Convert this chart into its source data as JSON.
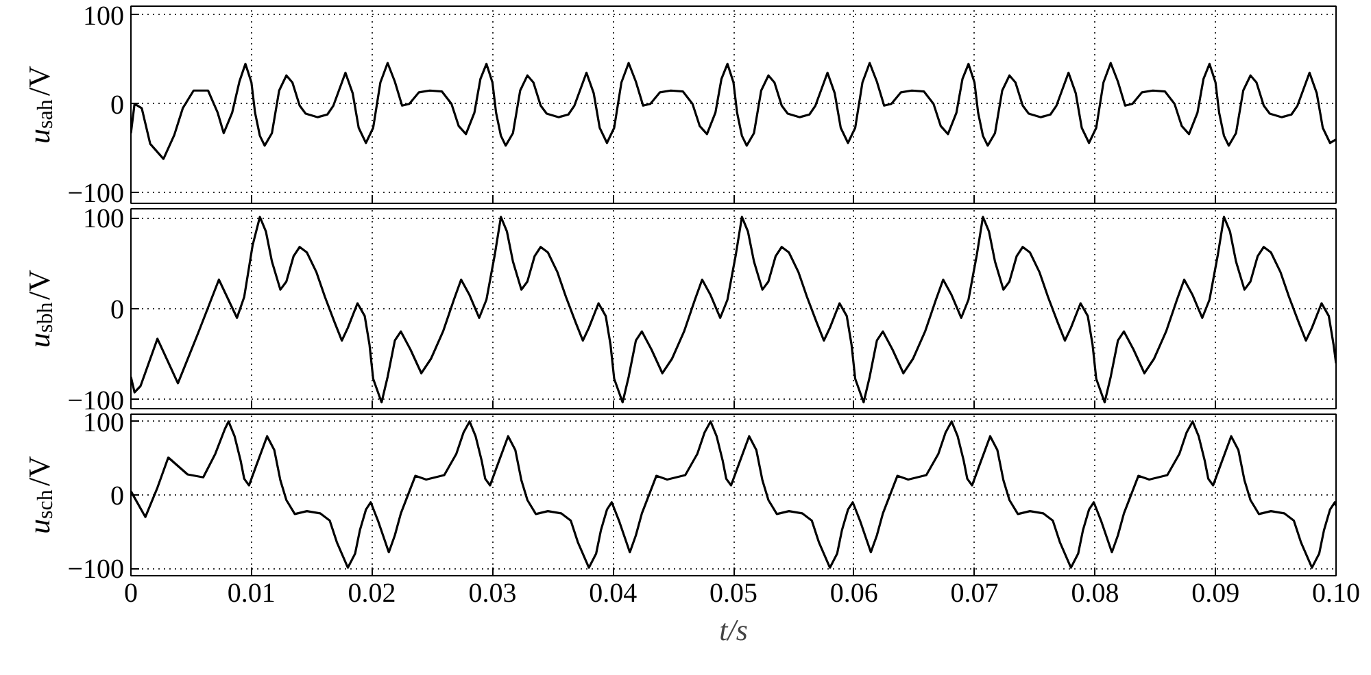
{
  "chart_data": [
    {
      "type": "line",
      "ylabel": "u$_{sah}$/V",
      "xlim": [
        0,
        0.1
      ],
      "ylim": [
        -112,
        110
      ],
      "yticks": [
        -100,
        0,
        100
      ],
      "xticks": [
        0,
        0.01,
        0.02,
        0.03,
        0.04,
        0.05,
        0.06,
        0.07,
        0.08,
        0.09
      ],
      "tick_labels": "y",
      "grid": true,
      "line_style": "solid",
      "series": [
        {
          "color": "#000000",
          "x": [
            0,
            0.0003,
            0.0009,
            0.0016,
            0.0027,
            0.0036,
            0.0043,
            0.0052,
            0.0064,
            0.0072,
            0.0077,
            0.0084,
            0.009,
            0.0095,
            0.01,
            0.0103,
            0.0107,
            0.0111,
            0.0117,
            0.0123,
            0.0129,
            0.0134,
            0.014,
            0.0145,
            0.0155,
            0.0163,
            0.0168,
            0.0178,
            0.0184,
            0.0189,
            0.0195,
            0.0201,
            0.0207,
            0.0213,
            0.0219,
            0.0225,
            0.0231,
            0.0239,
            0.0248,
            0.0258,
            0.0266,
            0.0272,
            0.0278,
            0.0285,
            0.029,
            0.0295,
            0.03,
            0.0303,
            0.0307,
            0.0311,
            0.0317,
            0.0323,
            0.0329,
            0.0334,
            0.034,
            0.0345,
            0.0355,
            0.0363,
            0.0368,
            0.0378,
            0.0384,
            0.0389,
            0.0395,
            0.0401,
            0.0407,
            0.0413,
            0.0419,
            0.0425,
            0.0431,
            0.0439,
            0.0448,
            0.0458,
            0.0466,
            0.0472,
            0.0478,
            0.0485,
            0.049,
            0.0495,
            0.05,
            0.0503,
            0.0507,
            0.0511,
            0.0517,
            0.0523,
            0.0529,
            0.0534,
            0.054,
            0.0545,
            0.0555,
            0.0563,
            0.0568,
            0.0578,
            0.0584,
            0.0589,
            0.0595,
            0.0601,
            0.0607,
            0.0613,
            0.0619,
            0.0625,
            0.0631,
            0.0639,
            0.0648,
            0.0658,
            0.0666,
            0.0672,
            0.0678,
            0.0685,
            0.069,
            0.0695,
            0.07,
            0.0703,
            0.0707,
            0.0711,
            0.0717,
            0.0723,
            0.0729,
            0.0734,
            0.074,
            0.0745,
            0.0755,
            0.0763,
            0.0768,
            0.0778,
            0.0784,
            0.0789,
            0.0795,
            0.0801,
            0.0807,
            0.0813,
            0.0819,
            0.0825,
            0.0831,
            0.0839,
            0.0848,
            0.0858,
            0.0866,
            0.0872,
            0.0878,
            0.0885,
            0.089,
            0.0895,
            0.09,
            0.0903,
            0.0907,
            0.0911,
            0.0917,
            0.0923,
            0.0929,
            0.0934,
            0.094,
            0.0945,
            0.0955,
            0.0963,
            0.0968,
            0.0978,
            0.0984,
            0.0989,
            0.0995,
            0.1
          ],
          "values": [
            -33,
            0,
            -5,
            -45,
            -62,
            -35,
            -5,
            15,
            15,
            -10,
            -33,
            -10,
            25,
            45,
            24,
            -10,
            -36,
            -47,
            -33,
            15,
            32,
            24,
            -2,
            -11,
            -15,
            -12,
            -2,
            35,
            12,
            -27,
            -44,
            -27,
            24,
            46,
            25,
            -2,
            0,
            13,
            15,
            14,
            0,
            -25,
            -34,
            -10,
            28,
            45,
            24,
            -10,
            -36,
            -47,
            -33,
            15,
            32,
            24,
            -2,
            -11,
            -15,
            -12,
            -2,
            35,
            12,
            -27,
            -44,
            -27,
            24,
            46,
            25,
            -2,
            0,
            13,
            15,
            14,
            0,
            -25,
            -34,
            -10,
            28,
            45,
            24,
            -10,
            -36,
            -47,
            -33,
            15,
            32,
            24,
            -2,
            -11,
            -15,
            -12,
            -2,
            35,
            12,
            -27,
            -44,
            -27,
            24,
            46,
            25,
            -2,
            0,
            13,
            15,
            14,
            0,
            -25,
            -34,
            -10,
            28,
            45,
            24,
            -10,
            -36,
            -47,
            -33,
            15,
            32,
            24,
            -2,
            -11,
            -15,
            -12,
            -2,
            35,
            12,
            -27,
            -44,
            -27,
            24,
            46,
            25,
            -2,
            0,
            13,
            15,
            14,
            0,
            -25,
            -34,
            -10,
            28,
            45,
            24,
            -10,
            -36,
            -47,
            -33,
            15,
            32,
            24,
            -2,
            -11,
            -15,
            -12,
            -2,
            35,
            12,
            -27,
            -44,
            -40
          ]
        }
      ]
    },
    {
      "type": "line",
      "ylabel": "u$_{sbh}$/V",
      "xlim": [
        0,
        0.1
      ],
      "ylim": [
        -110,
        110
      ],
      "yticks": [
        -100,
        0,
        100
      ],
      "xticks": [
        0,
        0.01,
        0.02,
        0.03,
        0.04,
        0.05,
        0.06,
        0.07,
        0.08,
        0.09
      ],
      "tick_labels": "y",
      "grid": true,
      "line_style": "solid",
      "series": [
        {
          "color": "#000000",
          "x": [
            0,
            0.0003,
            0.0008,
            0.0022,
            0.0039,
            0.0056,
            0.0073,
            0.0088,
            0.0094,
            0.0101,
            0.0107,
            0.0112,
            0.0117,
            0.0124,
            0.0129,
            0.0135,
            0.014,
            0.0146,
            0.0154,
            0.0161,
            0.0169,
            0.0175,
            0.018,
            0.0188,
            0.0194,
            0.0198,
            0.0201,
            0.0208,
            0.0213,
            0.0219,
            0.0224,
            0.0232,
            0.0241,
            0.0249,
            0.0259,
            0.0268,
            0.0274,
            0.0281,
            0.0289,
            0.0295,
            0.0302,
            0.0307,
            0.0312,
            0.0317,
            0.0324,
            0.0329,
            0.0335,
            0.034,
            0.0346,
            0.0354,
            0.0361,
            0.0369,
            0.0375,
            0.038,
            0.0388,
            0.0394,
            0.0398,
            0.0401,
            0.0408,
            0.0413,
            0.0419,
            0.0424,
            0.0432,
            0.0441,
            0.0449,
            0.0459,
            0.0468,
            0.0474,
            0.0481,
            0.0489,
            0.0495,
            0.0502,
            0.0507,
            0.0512,
            0.0517,
            0.0524,
            0.0529,
            0.0535,
            0.054,
            0.0546,
            0.0554,
            0.0561,
            0.0569,
            0.0575,
            0.058,
            0.0588,
            0.0594,
            0.0598,
            0.0601,
            0.0608,
            0.0613,
            0.0619,
            0.0624,
            0.0632,
            0.0641,
            0.0649,
            0.0659,
            0.0668,
            0.0674,
            0.0681,
            0.0689,
            0.0695,
            0.0702,
            0.0707,
            0.0712,
            0.0717,
            0.0724,
            0.0729,
            0.0735,
            0.074,
            0.0746,
            0.0754,
            0.0761,
            0.0769,
            0.0775,
            0.078,
            0.0788,
            0.0794,
            0.0798,
            0.0801,
            0.0808,
            0.0813,
            0.0819,
            0.0824,
            0.0832,
            0.0841,
            0.0849,
            0.0859,
            0.0868,
            0.0874,
            0.0881,
            0.0889,
            0.0895,
            0.0902,
            0.0907,
            0.0912,
            0.0917,
            0.0924,
            0.0929,
            0.0935,
            0.094,
            0.0946,
            0.0954,
            0.0961,
            0.0969,
            0.0975,
            0.098,
            0.0988,
            0.0994,
            0.0998,
            0.1
          ],
          "values": [
            -75,
            -92,
            -85,
            -33,
            -82,
            -26,
            32,
            -10,
            13,
            70,
            101,
            85,
            52,
            21,
            30,
            58,
            68,
            62,
            40,
            13,
            -15,
            -35,
            -21,
            6,
            -8,
            -40,
            -77,
            -103,
            -75,
            -35,
            -25,
            -45,
            -71,
            -55,
            -25,
            10,
            32,
            15,
            -10,
            10,
            60,
            101,
            85,
            52,
            21,
            30,
            58,
            68,
            62,
            40,
            13,
            -15,
            -35,
            -21,
            6,
            -8,
            -40,
            -77,
            -103,
            -75,
            -35,
            -25,
            -45,
            -71,
            -55,
            -25,
            10,
            32,
            15,
            -10,
            10,
            60,
            101,
            85,
            52,
            21,
            30,
            58,
            68,
            62,
            40,
            13,
            -15,
            -35,
            -21,
            6,
            -8,
            -40,
            -77,
            -103,
            -75,
            -35,
            -25,
            -45,
            -71,
            -55,
            -25,
            10,
            32,
            15,
            -10,
            10,
            60,
            101,
            85,
            52,
            21,
            30,
            58,
            68,
            62,
            40,
            13,
            -15,
            -35,
            -21,
            6,
            -8,
            -40,
            -77,
            -103,
            -75,
            -35,
            -25,
            -45,
            -71,
            -55,
            -25,
            10,
            32,
            15,
            -10,
            10,
            60,
            101,
            85,
            52,
            21,
            30,
            58,
            68,
            62,
            40,
            13,
            -15,
            -35,
            -21,
            6,
            -8,
            -40,
            -60
          ]
        }
      ]
    },
    {
      "type": "line",
      "ylabel": "u$_{sch}$/V",
      "xlabel": "t/s",
      "xlim": [
        0,
        0.1
      ],
      "ylim": [
        -110,
        110
      ],
      "yticks": [
        -100,
        0,
        100
      ],
      "xticks": [
        0,
        0.01,
        0.02,
        0.03,
        0.04,
        0.05,
        0.06,
        0.07,
        0.08,
        0.09,
        {
          "value": 0.1,
          "label": "0.10"
        }
      ],
      "grid": true,
      "line_style": "solid",
      "series": [
        {
          "color": "#000000",
          "x": [
            0,
            0.0012,
            0.0022,
            0.0031,
            0.0047,
            0.006,
            0.007,
            0.0078,
            0.0081,
            0.0086,
            0.0091,
            0.0094,
            0.0098,
            0.0104,
            0.0113,
            0.0119,
            0.0124,
            0.0129,
            0.0136,
            0.0146,
            0.0157,
            0.0165,
            0.0171,
            0.018,
            0.0186,
            0.019,
            0.0195,
            0.0199,
            0.0205,
            0.0214,
            0.0219,
            0.0224,
            0.0236,
            0.0245,
            0.026,
            0.027,
            0.0276,
            0.0281,
            0.0286,
            0.0291,
            0.0294,
            0.0298,
            0.0304,
            0.0313,
            0.0319,
            0.0324,
            0.0329,
            0.0336,
            0.0346,
            0.0357,
            0.0365,
            0.0371,
            0.038,
            0.0386,
            0.039,
            0.0395,
            0.0399,
            0.0405,
            0.0414,
            0.0419,
            0.0424,
            0.0436,
            0.0445,
            0.046,
            0.047,
            0.0476,
            0.0481,
            0.0486,
            0.0491,
            0.0494,
            0.0498,
            0.0504,
            0.0513,
            0.0519,
            0.0524,
            0.0529,
            0.0536,
            0.0546,
            0.0557,
            0.0565,
            0.0571,
            0.058,
            0.0586,
            0.059,
            0.0595,
            0.0599,
            0.0605,
            0.0614,
            0.0619,
            0.0624,
            0.0636,
            0.0645,
            0.066,
            0.067,
            0.0676,
            0.0681,
            0.0686,
            0.0691,
            0.0694,
            0.0698,
            0.0704,
            0.0713,
            0.0719,
            0.0724,
            0.0729,
            0.0736,
            0.0746,
            0.0757,
            0.0765,
            0.0771,
            0.078,
            0.0786,
            0.079,
            0.0795,
            0.0799,
            0.0805,
            0.0814,
            0.0819,
            0.0824,
            0.0836,
            0.0845,
            0.086,
            0.087,
            0.0876,
            0.0881,
            0.0886,
            0.0891,
            0.0894,
            0.0898,
            0.0904,
            0.0913,
            0.0919,
            0.0924,
            0.0929,
            0.0936,
            0.0946,
            0.0957,
            0.0965,
            0.0971,
            0.098,
            0.0986,
            0.099,
            0.0995,
            0.0999,
            0.1
          ],
          "values": [
            5,
            -30,
            10,
            51,
            28,
            24,
            56,
            90,
            100,
            80,
            47,
            22,
            13,
            40,
            80,
            61,
            20,
            -7,
            -26,
            -22,
            -25,
            -35,
            -65,
            -99,
            -80,
            -48,
            -20,
            -10,
            -35,
            -78,
            -55,
            -25,
            26,
            21,
            27,
            56,
            85,
            100,
            80,
            47,
            22,
            13,
            40,
            80,
            61,
            20,
            -7,
            -26,
            -22,
            -25,
            -35,
            -65,
            -99,
            -80,
            -48,
            -20,
            -10,
            -35,
            -78,
            -55,
            -25,
            26,
            21,
            27,
            56,
            85,
            100,
            80,
            47,
            22,
            13,
            40,
            80,
            61,
            20,
            -7,
            -26,
            -22,
            -25,
            -35,
            -65,
            -99,
            -80,
            -48,
            -20,
            -10,
            -35,
            -78,
            -55,
            -25,
            26,
            21,
            27,
            56,
            85,
            100,
            80,
            47,
            22,
            13,
            40,
            80,
            61,
            20,
            -7,
            -26,
            -22,
            -25,
            -35,
            -65,
            -99,
            -80,
            -48,
            -20,
            -10,
            -35,
            -78,
            -55,
            -25,
            26,
            21,
            27,
            56,
            85,
            100,
            80,
            47,
            22,
            13,
            40,
            80,
            61,
            20,
            -7,
            -26,
            -22,
            -25,
            -35,
            -65,
            -99,
            -80,
            -48,
            -20,
            -10,
            -15
          ]
        }
      ]
    }
  ]
}
